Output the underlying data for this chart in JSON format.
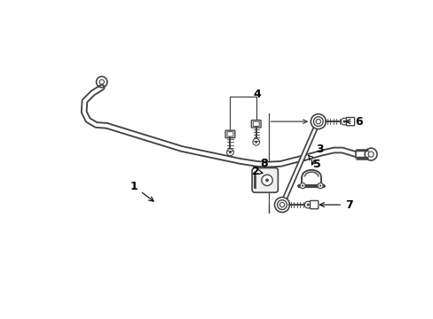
{
  "background_color": "#ffffff",
  "line_color": "#444444",
  "label_color": "#000000",
  "bar_outer_lw": 4.5,
  "bar_inner_lw": 2.2,
  "fig_w": 4.89,
  "fig_h": 3.6,
  "dpi": 100
}
